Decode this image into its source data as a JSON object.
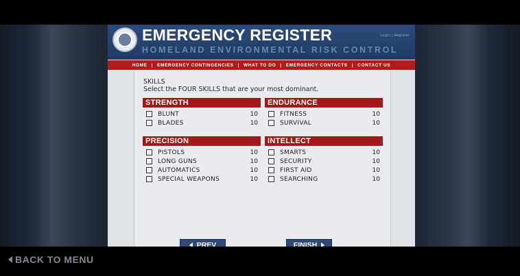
{
  "header": {
    "title": "EMERGENCY REGISTER",
    "subtitle": "HOMELAND ENVIRONMENTAL RISK CONTROL",
    "login": "Login | Register"
  },
  "nav": {
    "items": [
      "HOME",
      "EMERGENCY CONTINGENCIES",
      "WHAT TO DO",
      "EMERGENCY CONTACTS",
      "CONTACT US"
    ],
    "separator": "|"
  },
  "skills": {
    "heading": "SKILLS",
    "instruction": "Select the FOUR SKILLS that are your most dominant."
  },
  "categories": [
    {
      "title": "STRENGTH",
      "skills": [
        {
          "name": "BLUNT",
          "value": "10"
        },
        {
          "name": "BLADES",
          "value": "10"
        }
      ]
    },
    {
      "title": "ENDURANCE",
      "skills": [
        {
          "name": "FITNESS",
          "value": "10"
        },
        {
          "name": "SURVIVAL",
          "value": "10"
        }
      ]
    },
    {
      "title": "PRECISION",
      "skills": [
        {
          "name": "PISTOLS",
          "value": "10"
        },
        {
          "name": "LONG GUNS",
          "value": "10"
        },
        {
          "name": "AUTOMATICS",
          "value": "10"
        },
        {
          "name": "SPECIAL WEAPONS",
          "value": "10"
        }
      ]
    },
    {
      "title": "INTELLECT",
      "skills": [
        {
          "name": "SMARTS",
          "value": "10"
        },
        {
          "name": "SECURITY",
          "value": "10"
        },
        {
          "name": "FIRST AID",
          "value": "10"
        },
        {
          "name": "SEARCHING",
          "value": "10"
        }
      ]
    }
  ],
  "buttons": {
    "prev": "PREV",
    "finish": "FINISH"
  },
  "back": {
    "label": "BACK TO MENU"
  },
  "colors": {
    "header_blue": "#1f3b66",
    "accent_red": "#a31818",
    "button_blue": "#2b4a78"
  }
}
